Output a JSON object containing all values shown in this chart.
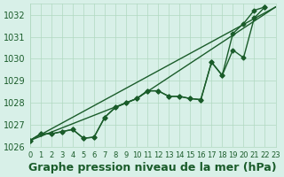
{
  "background_color": "#d8f0e8",
  "plot_bg_color": "#d8f0e8",
  "grid_color": "#b0d8c0",
  "line_color": "#1a5c2a",
  "xlabel": "Graphe pression niveau de la mer (hPa)",
  "ylim": [
    1026,
    1032.5
  ],
  "xlim": [
    0,
    23
  ],
  "yticks": [
    1026,
    1027,
    1028,
    1029,
    1030,
    1031,
    1032
  ],
  "xticks": [
    0,
    1,
    2,
    3,
    4,
    5,
    6,
    7,
    8,
    9,
    10,
    11,
    12,
    13,
    14,
    15,
    16,
    17,
    18,
    19,
    20,
    21,
    22,
    23
  ],
  "line1": [
    1026.3,
    1026.6,
    1026.6,
    1026.7,
    1026.8,
    1026.4,
    1026.45,
    1027.35,
    1027.8,
    1028.0,
    1028.2,
    1028.55,
    1028.55,
    1028.3,
    1028.3,
    1028.2,
    1028.15,
    1029.85,
    1029.25,
    1031.15,
    1031.6,
    1032.2,
    1032.35
  ],
  "line2": [
    1026.3,
    1026.6,
    1026.6,
    1026.7,
    1026.8,
    1026.4,
    1026.45,
    1027.35,
    1027.8,
    1028.0,
    1028.2,
    1028.55,
    1028.55,
    1028.3,
    1028.3,
    1028.2,
    1028.15,
    1029.85,
    1029.25,
    1030.4,
    1030.05,
    1031.85,
    1032.35
  ],
  "line3_x": [
    0,
    23
  ],
  "line3_y": [
    1026.3,
    1032.35
  ],
  "line4_x": [
    0,
    10,
    23
  ],
  "line4_y": [
    1026.3,
    1028.2,
    1032.35
  ],
  "marker": "D",
  "markersize": 2.5,
  "linewidth": 1.0,
  "xlabel_fontsize": 9,
  "tick_fontsize": 7,
  "tick_color": "#1a5c2a",
  "xlabel_color": "#1a5c2a",
  "xlabel_fontweight": "bold"
}
